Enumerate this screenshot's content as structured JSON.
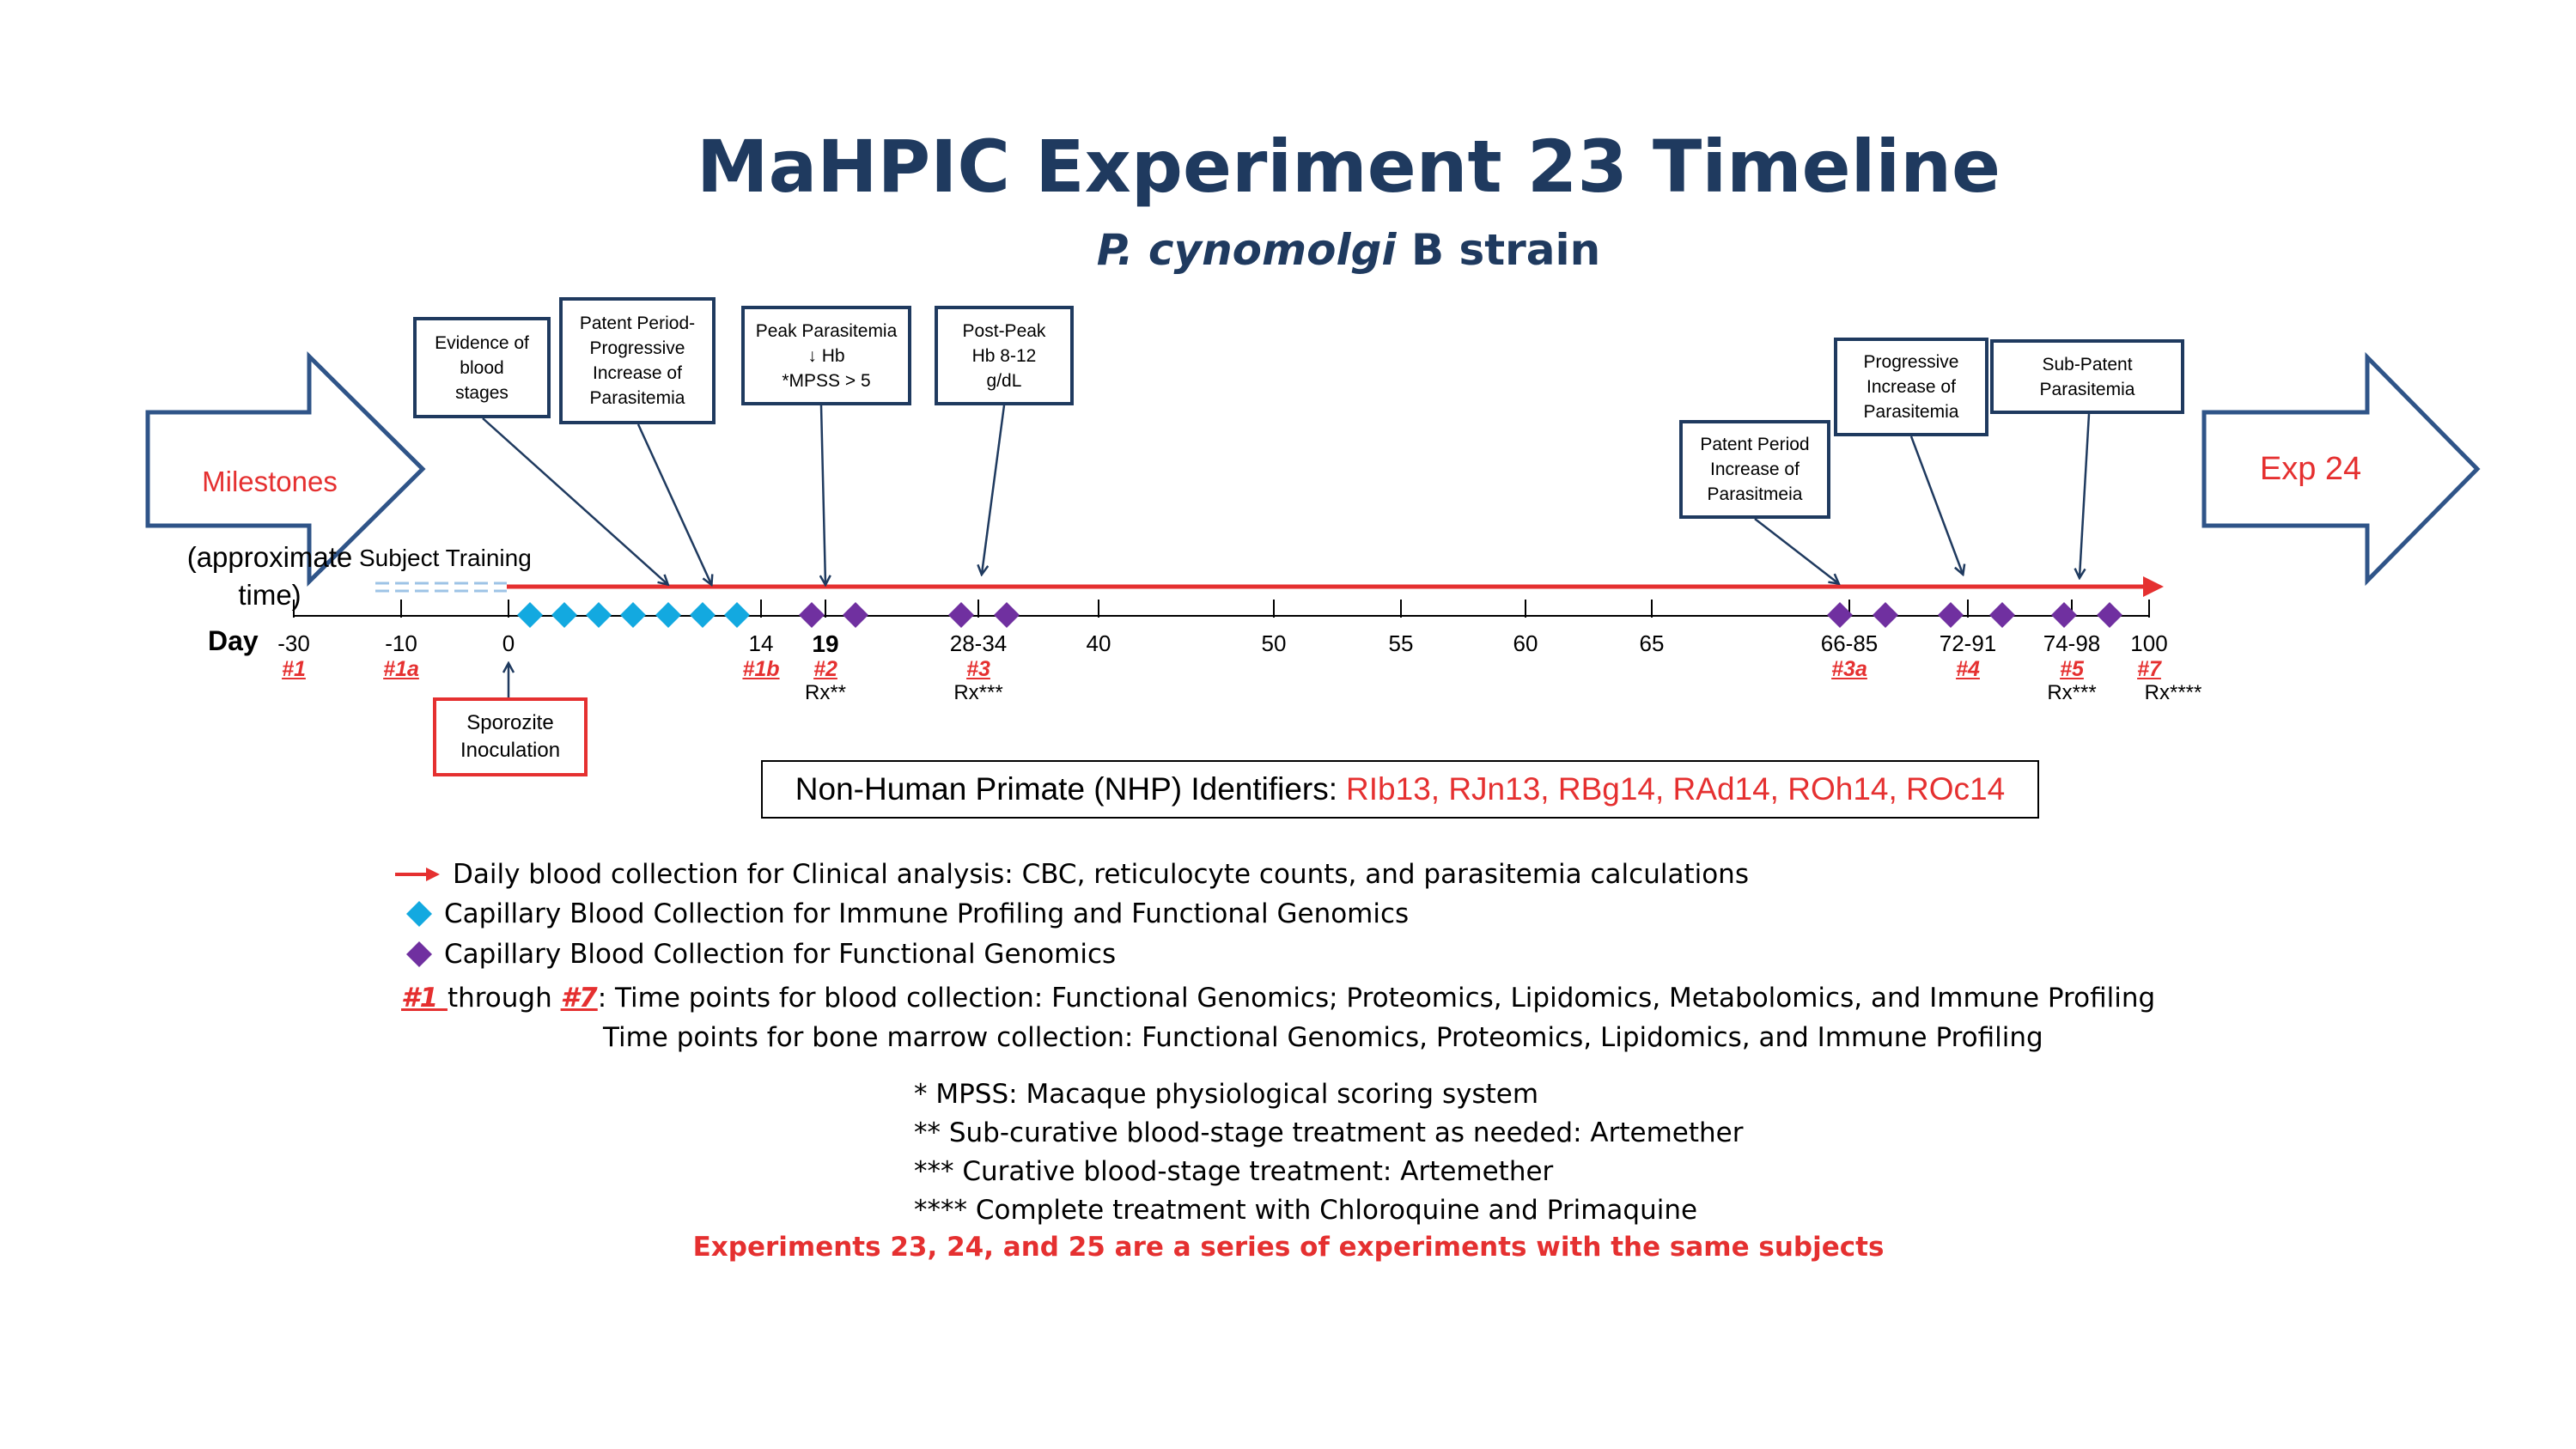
{
  "title": "MaHPIC Experiment 23 Timeline",
  "subtitle_italic": "P. cynomolgi",
  "subtitle_rest": " B strain",
  "milestones_arrow": {
    "label_red": "Milestones",
    "label_black": "(approximate time)"
  },
  "exp_arrow": {
    "label": "Exp 24"
  },
  "subject_training": "Subject Training",
  "day_label": "Day",
  "ticks": [
    {
      "label": "-30",
      "tp": "#1",
      "rx": ""
    },
    {
      "label": "-10",
      "tp": "#1a",
      "rx": ""
    },
    {
      "label": "0",
      "tp": "",
      "rx": ""
    },
    {
      "label": "14",
      "tp": "#1b",
      "rx": ""
    },
    {
      "label": "19",
      "tp": "#2",
      "rx": "Rx**"
    },
    {
      "label": "28-34",
      "tp": "#3",
      "rx": "Rx***"
    },
    {
      "label": "40",
      "tp": "",
      "rx": ""
    },
    {
      "label": "50",
      "tp": "",
      "rx": ""
    },
    {
      "label": "55",
      "tp": "",
      "rx": ""
    },
    {
      "label": "60",
      "tp": "",
      "rx": ""
    },
    {
      "label": "65",
      "tp": "",
      "rx": ""
    },
    {
      "label": "66-85",
      "tp": "#3a",
      "rx": ""
    },
    {
      "label": "72-91",
      "tp": "#4",
      "rx": ""
    },
    {
      "label": "74-98",
      "tp": "#5",
      "rx": "Rx***"
    },
    {
      "label": "100",
      "tp": "#7",
      "rx": "Rx****"
    }
  ],
  "milestone_boxes": [
    {
      "text": "Evidence of\nblood\nstages"
    },
    {
      "text": "Patent Period-\nProgressive\nIncrease of\nParasitemia"
    },
    {
      "text": "Peak Parasitemia\n↓ Hb\n*MPSS > 5"
    },
    {
      "text": "Post-Peak\nHb 8-12\ng/dL"
    },
    {
      "text": "Patent Period\nIncrease of\nParasitmeia"
    },
    {
      "text": "Progressive\nIncrease of\nParasitemia"
    },
    {
      "text": "Sub-Patent\nParasitemia"
    }
  ],
  "inoculation_box": "Sporozite\nInoculation",
  "nhp": {
    "prefix": "Non-Human Primate (NHP) Identifiers:",
    "ids": "RIb13, RJn13, RBg14, RAd14, ROh14, ROc14"
  },
  "legend": [
    {
      "icon": "red-arrow-icon",
      "text": "Daily blood collection for Clinical analysis: CBC, reticulocyte counts, and parasitemia calculations"
    },
    {
      "icon": "blue-diamond-icon",
      "text": "Capillary Blood Collection for Immune Profiling and Functional Genomics"
    },
    {
      "icon": "purple-diamond-icon",
      "text": "Capillary Blood Collection for Functional Genomics"
    }
  ],
  "timepoints_note": {
    "from": "#1 ",
    "through": "through ",
    "to": "#7",
    "line1": ": Time points for blood collection: Functional Genomics; Proteomics, Lipidomics, Metabolomics, and Immune Profiling",
    "line2": "Time points for bone marrow collection: Functional Genomics, Proteomics, Lipidomics, and Immune Profiling"
  },
  "footnotes": [
    "* MPSS: Macaque physiological scoring system",
    "** Sub-curative blood-stage treatment as needed: Artemether",
    "*** Curative blood-stage treatment: Artemether",
    "**** Complete treatment with Chloroquine and Primaquine"
  ],
  "final_note": "Experiments 23, 24, and 25 are a series of experiments with the same subjects",
  "colors": {
    "navy": "#1f3a5f",
    "red": "#e53030",
    "cyan": "#13a9e0",
    "purple": "#7030a0",
    "dash_blue": "#9dc3e6"
  }
}
